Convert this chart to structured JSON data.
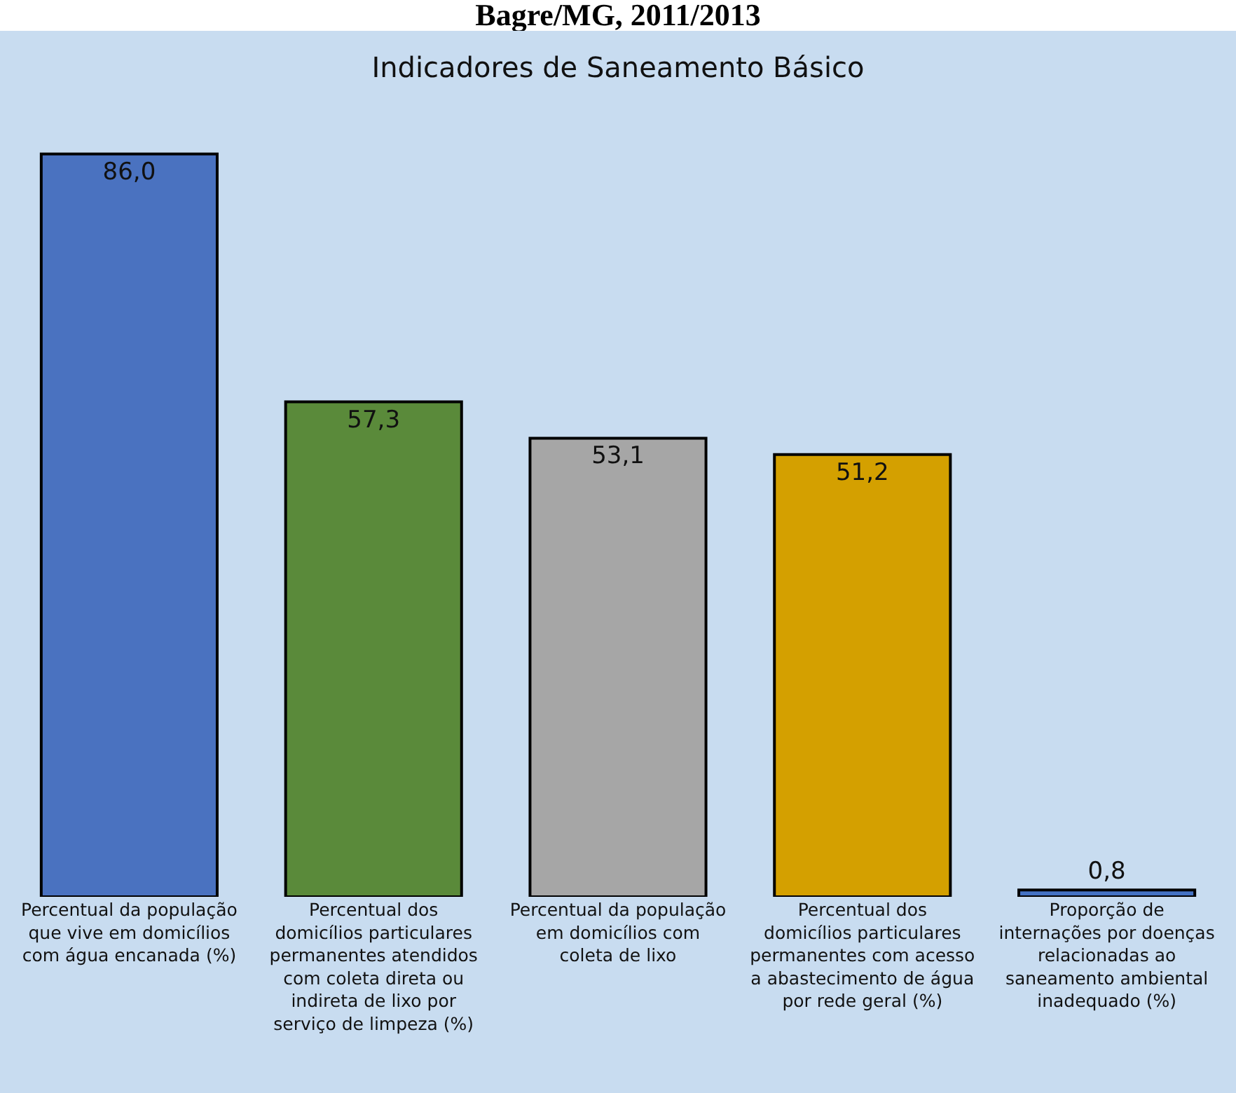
{
  "chart_data": {
    "type": "bar",
    "title": "Indicadores de Saneamento Básico",
    "subtitle": "Bagre/MG, 2011/2013",
    "categories": [
      "Percentual da população que vive em domicílios com água encanada (%)",
      "Percentual dos domicílios particulares permanentes atendidos com coleta direta ou indireta de lixo por serviço de limpeza (%)",
      "Percentual da população em domicílios com coleta de lixo",
      "Percentual dos domicílios particulares permanentes com acesso a abastecimento de água por rede geral (%)",
      "Proporção de internações por doenças relacionadas ao saneamento ambiental inadequado (%)"
    ],
    "values": [
      86.0,
      57.3,
      53.1,
      51.2,
      0.8
    ],
    "value_labels": [
      "86,0",
      "57,3",
      "53,1",
      "51,2",
      "0,8"
    ],
    "colors": [
      "#4a72c0",
      "#5a8a3a",
      "#a6a6a6",
      "#d4a000",
      "#4472c4"
    ],
    "grid": false,
    "legend": false
  }
}
